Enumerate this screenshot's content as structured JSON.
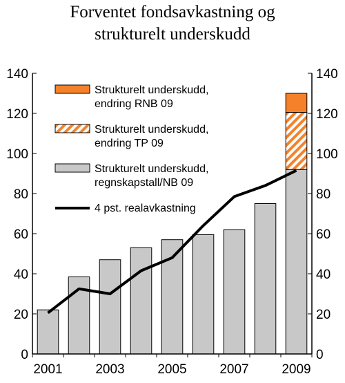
{
  "title": {
    "line1": "Forventet fondsavkastning og",
    "line2": "strukturelt underskudd"
  },
  "colors": {
    "gray_bar": "#c8c8c8",
    "orange": "#f5822a",
    "line": "#000000"
  },
  "chart_data": {
    "type": "bar",
    "categories": [
      "2001",
      "2002",
      "2003",
      "2004",
      "2005",
      "2006",
      "2007",
      "2008",
      "2009"
    ],
    "x_tick_labels": [
      "2001",
      "2003",
      "2005",
      "2007",
      "2009"
    ],
    "y_ticks": [
      0,
      20,
      40,
      60,
      80,
      100,
      120,
      140
    ],
    "ylim": [
      0,
      140
    ],
    "grid": false,
    "legend_position": "top-left",
    "series": [
      {
        "name": "Strukturelt underskudd, regnskapstall/NB 09",
        "kind": "bar",
        "fill": "gray",
        "values": [
          22,
          38.5,
          47,
          53,
          57,
          59.5,
          62,
          75,
          92
        ]
      },
      {
        "name": "Strukturelt underskudd, endring TP 09",
        "kind": "bar-stacked",
        "fill": "orange-hatched",
        "values": [
          0,
          0,
          0,
          0,
          0,
          0,
          0,
          0,
          28.5
        ]
      },
      {
        "name": "Strukturelt underskudd, endring RNB 09",
        "kind": "bar-stacked",
        "fill": "orange",
        "values": [
          0,
          0,
          0,
          0,
          0,
          0,
          0,
          0,
          9.5
        ]
      },
      {
        "name": "4 pst. realavkastning",
        "kind": "line",
        "values": [
          20.5,
          32.5,
          30,
          41.5,
          48,
          64,
          78.5,
          84,
          91.5
        ]
      }
    ],
    "legend": [
      {
        "line1": "Strukturelt underskudd,",
        "line2": "endring RNB 09",
        "swatch": "orange"
      },
      {
        "line1": "Strukturelt underskudd,",
        "line2": "endring TP 09",
        "swatch": "orange-hatched"
      },
      {
        "line1": "Strukturelt underskudd,",
        "line2": "regnskapstall/NB 09",
        "swatch": "gray"
      },
      {
        "line1": "4 pst. realavkastning",
        "line2": "",
        "swatch": "line"
      }
    ]
  }
}
